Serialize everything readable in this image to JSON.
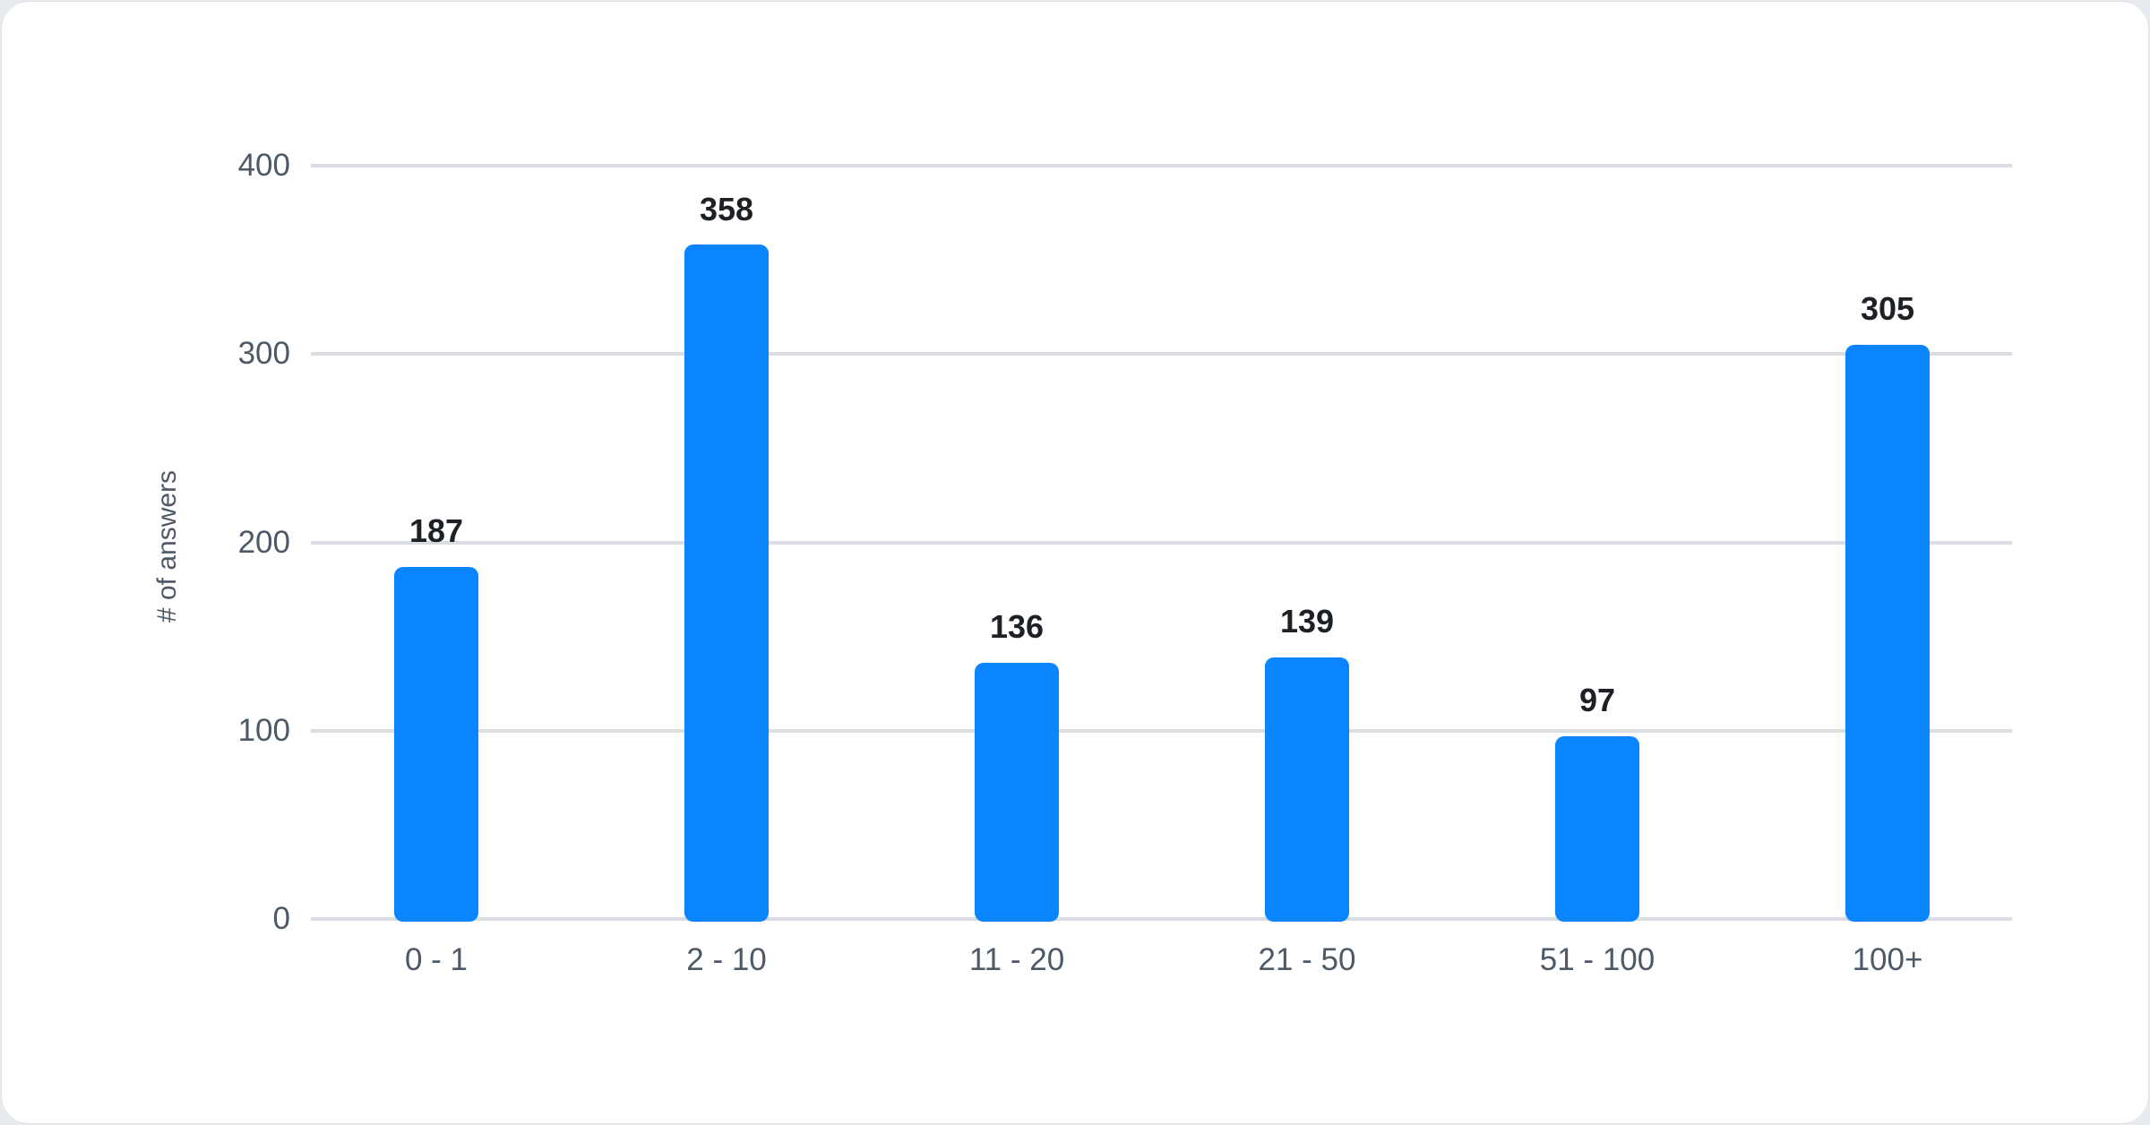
{
  "chart_data": {
    "type": "bar",
    "categories": [
      "0 - 1",
      "2 - 10",
      "11 - 20",
      "21 - 50",
      "51 - 100",
      "100+"
    ],
    "values": [
      187,
      358,
      136,
      139,
      97,
      305
    ],
    "title": "",
    "xlabel": "",
    "ylabel": "# of answers",
    "ylim": [
      0,
      400
    ],
    "yticks": [
      400,
      300,
      200,
      100,
      0
    ],
    "grid": true,
    "legend": false,
    "data_labels_shown": true
  },
  "colors": {
    "bar": "#0a84ff",
    "grid": "#d9dde1",
    "tick_text": "#4d5966",
    "value_text": "#1d2025",
    "card_background": "#ffffff",
    "page_background": "#e7eaee"
  }
}
